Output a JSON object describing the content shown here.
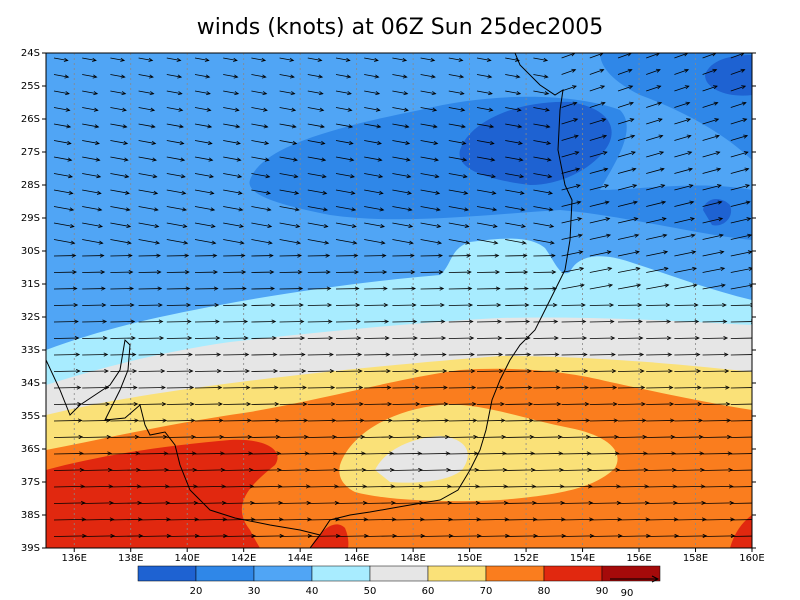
{
  "map": {
    "title": "winds (knots) at 06Z Sun 25dec2005",
    "lat_labels": [
      "24S",
      "25S",
      "26S",
      "27S",
      "28S",
      "29S",
      "30S",
      "31S",
      "32S",
      "33S",
      "34S",
      "35S",
      "36S",
      "37S",
      "38S",
      "39S"
    ],
    "lon_labels": [
      "136E",
      "138E",
      "140E",
      "142E",
      "144E",
      "146E",
      "148E",
      "150E",
      "152E",
      "154E",
      "156E",
      "158E",
      "160E"
    ],
    "colorbar": {
      "levels": [
        20,
        30,
        40,
        50,
        60,
        70,
        80,
        90
      ],
      "colors": [
        "#1e62d2",
        "#2f87e8",
        "#50a5f5",
        "#a8ecff",
        "#e6e6e6",
        "#fae178",
        "#fa7d1e",
        "#e1280f",
        "#a50a0a"
      ]
    },
    "ref_vector_label": "90"
  }
}
